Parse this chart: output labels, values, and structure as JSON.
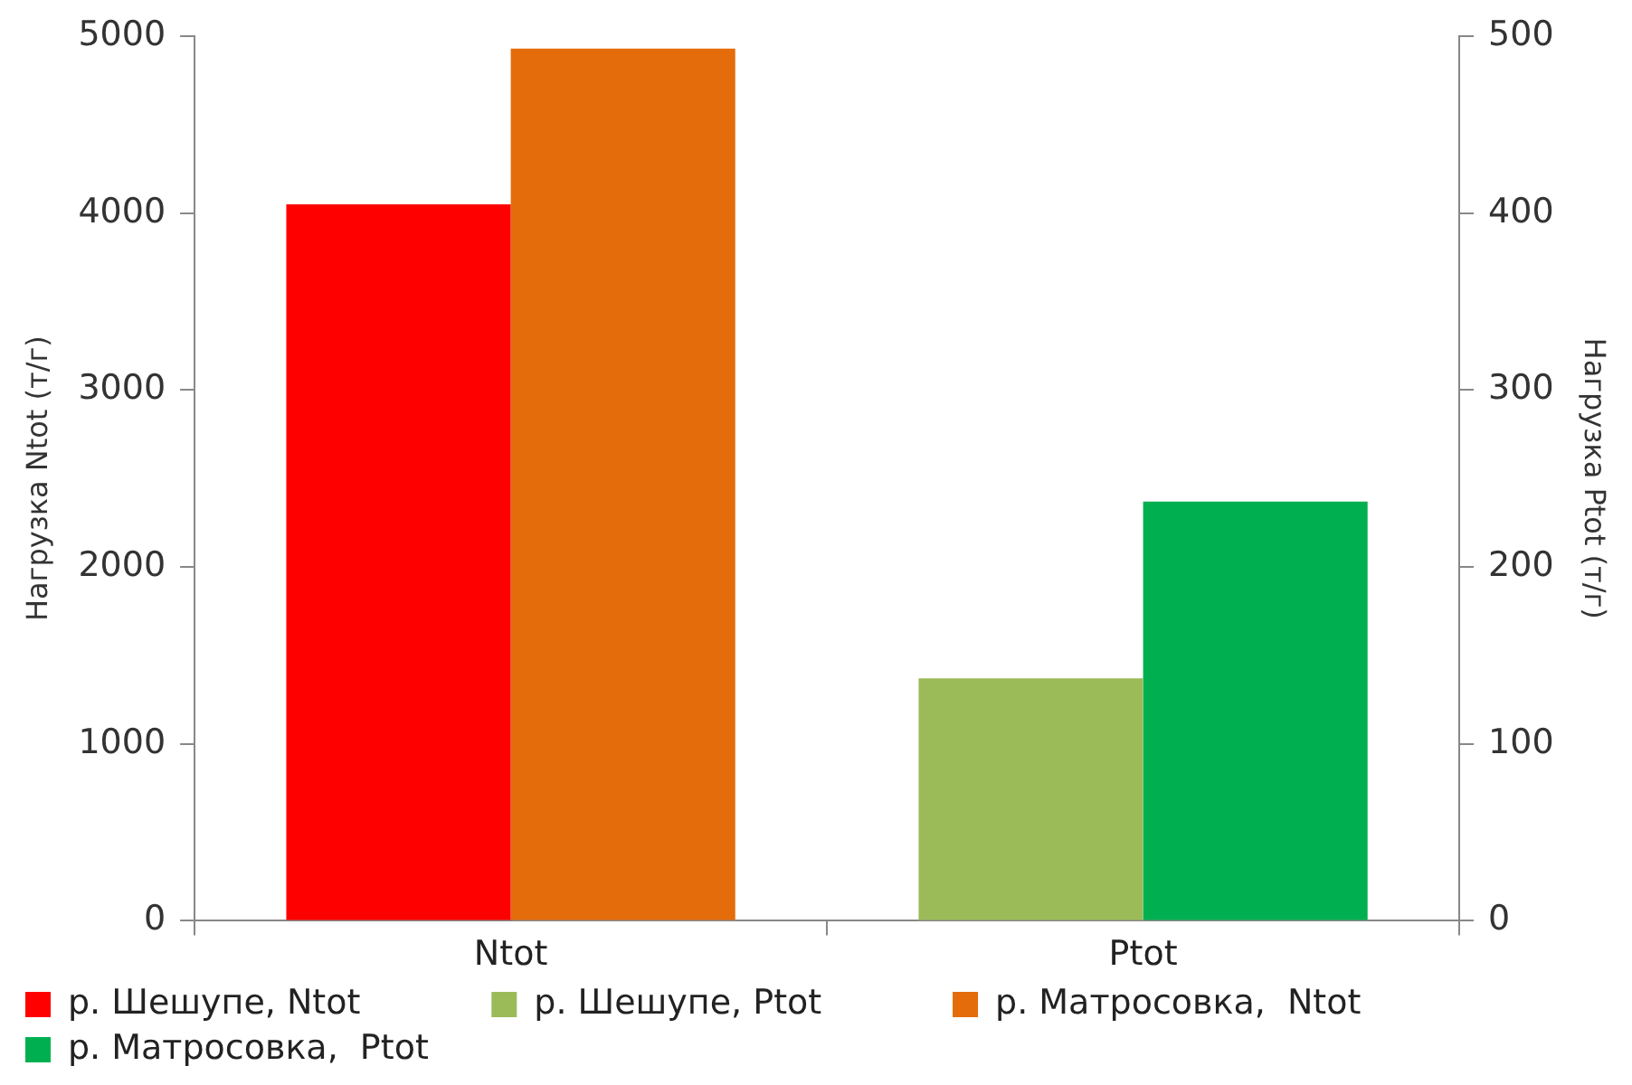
{
  "chart_data": {
    "type": "bar",
    "categories": [
      "Ntot",
      "Ptot"
    ],
    "ylabel": "Нагрузка Ntot (т/г)",
    "y2label": "Нагрузка Ptot (т/г)",
    "ylim": [
      0,
      5000
    ],
    "yticks": [
      0,
      1000,
      2000,
      3000,
      4000,
      5000
    ],
    "y2lim": [
      0,
      500
    ],
    "y2ticks": [
      0,
      100,
      200,
      300,
      400,
      500
    ],
    "series": [
      {
        "name": "р. Шешупе, Ntot",
        "color": "#ff0000",
        "values": [
          4050,
          null
        ]
      },
      {
        "name": "р. Матросовка,  Ntot",
        "color": "#e46c0a",
        "values": [
          4930,
          null
        ]
      },
      {
        "name": "р. Шешупе, Ptot",
        "color": "#9bbb59",
        "values": [
          null,
          137
        ],
        "axis": "y2"
      },
      {
        "name": "р. Матросовка,  Ptot",
        "color": "#00b050",
        "values": [
          null,
          237
        ],
        "axis": "y2"
      }
    ],
    "grid": false,
    "legend": "bottom"
  }
}
